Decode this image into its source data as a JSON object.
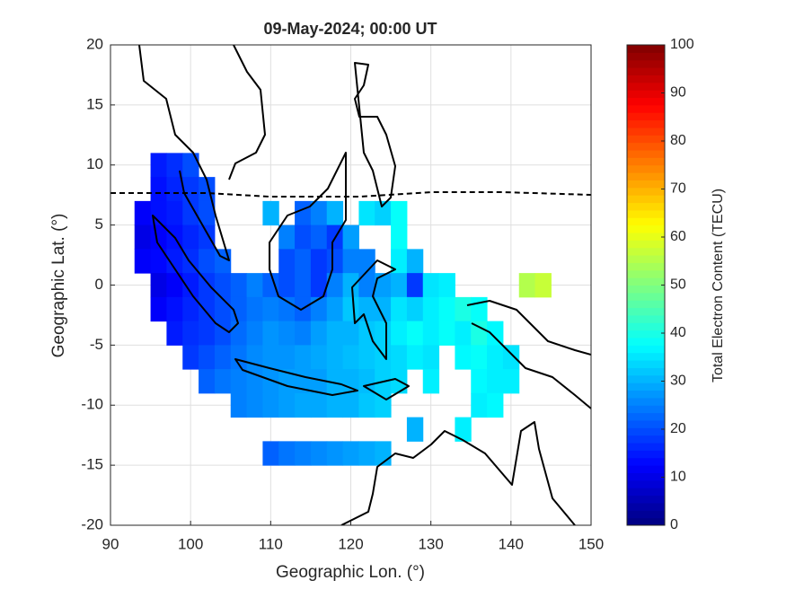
{
  "chart_data": {
    "type": "heatmap",
    "title": "09-May-2024; 00:00 UT",
    "xlabel": "Geographic Lon. (°)",
    "ylabel": "Geographic Lat. (°)",
    "colorbar_label": "Total Electron Content (TECU)",
    "xlim": [
      90,
      150
    ],
    "xticks": [
      90,
      100,
      110,
      120,
      130,
      140,
      150
    ],
    "ylim": [
      -20,
      20
    ],
    "yticks": [
      -20,
      -15,
      -10,
      -5,
      0,
      5,
      10,
      15,
      20
    ],
    "clim": [
      0,
      100
    ],
    "cticks": [
      0,
      10,
      20,
      30,
      40,
      50,
      60,
      70,
      80,
      90,
      100
    ],
    "colormap": "jet",
    "grid": true,
    "x": [
      96,
      98,
      100,
      96,
      98,
      100,
      102,
      94,
      96,
      98,
      100,
      102,
      110,
      114,
      116,
      118,
      122,
      124,
      126,
      94,
      96,
      98,
      100,
      102,
      112,
      114,
      116,
      118,
      120,
      126,
      94,
      96,
      98,
      100,
      102,
      104,
      112,
      114,
      116,
      118,
      120,
      122,
      126,
      128,
      96,
      98,
      100,
      102,
      104,
      106,
      108,
      110,
      112,
      114,
      116,
      118,
      120,
      122,
      124,
      126,
      128,
      130,
      132,
      142,
      144,
      96,
      98,
      100,
      102,
      104,
      106,
      108,
      110,
      112,
      114,
      116,
      118,
      120,
      122,
      124,
      126,
      128,
      130,
      132,
      134,
      136,
      98,
      100,
      102,
      104,
      106,
      108,
      110,
      112,
      114,
      116,
      118,
      120,
      122,
      124,
      126,
      128,
      130,
      132,
      134,
      136,
      138,
      100,
      102,
      104,
      106,
      108,
      110,
      112,
      114,
      116,
      118,
      120,
      122,
      124,
      126,
      128,
      130,
      134,
      136,
      138,
      140,
      102,
      104,
      106,
      108,
      110,
      112,
      114,
      116,
      118,
      120,
      122,
      124,
      126,
      130,
      136,
      138,
      140,
      106,
      108,
      110,
      112,
      114,
      116,
      118,
      120,
      122,
      124,
      136,
      138,
      128,
      134,
      110,
      112,
      114,
      116,
      118,
      120,
      122,
      124
    ],
    "y": [
      10,
      10,
      10,
      8,
      8,
      8,
      8,
      6,
      6,
      6,
      6,
      6,
      6,
      6,
      6,
      6,
      6,
      6,
      6,
      4,
      4,
      4,
      4,
      4,
      4,
      4,
      4,
      4,
      4,
      4,
      2,
      2,
      2,
      2,
      2,
      2,
      2,
      2,
      2,
      2,
      2,
      2,
      2,
      2,
      0,
      0,
      0,
      0,
      0,
      0,
      0,
      0,
      0,
      0,
      0,
      0,
      0,
      0,
      0,
      0,
      0,
      0,
      0,
      0,
      0,
      -2,
      -2,
      -2,
      -2,
      -2,
      -2,
      -2,
      -2,
      -2,
      -2,
      -2,
      -2,
      -2,
      -2,
      -2,
      -2,
      -2,
      -2,
      -2,
      -2,
      -2,
      -4,
      -4,
      -4,
      -4,
      -4,
      -4,
      -4,
      -4,
      -4,
      -4,
      -4,
      -4,
      -4,
      -4,
      -4,
      -4,
      -4,
      -4,
      -4,
      -4,
      -4,
      -6,
      -6,
      -6,
      -6,
      -6,
      -6,
      -6,
      -6,
      -6,
      -6,
      -6,
      -6,
      -6,
      -6,
      -6,
      -6,
      -6,
      -6,
      -6,
      -6,
      -8,
      -8,
      -8,
      -8,
      -8,
      -8,
      -8,
      -8,
      -8,
      -8,
      -8,
      -8,
      -8,
      -8,
      -8,
      -8,
      -8,
      -10,
      -10,
      -10,
      -10,
      -10,
      -10,
      -10,
      -10,
      -10,
      -10,
      -10,
      -10,
      -12,
      -12,
      -14,
      -14,
      -14,
      -14,
      -14,
      -14,
      -14,
      -14
    ],
    "values": [
      15,
      17,
      20,
      14,
      16,
      18,
      20,
      12,
      14,
      15,
      18,
      20,
      30,
      22,
      25,
      30,
      35,
      33,
      38,
      10,
      12,
      14,
      16,
      18,
      25,
      20,
      22,
      18,
      28,
      38,
      12,
      13,
      15,
      17,
      20,
      22,
      20,
      22,
      18,
      20,
      25,
      25,
      36,
      30,
      10,
      12,
      15,
      18,
      20,
      22,
      25,
      22,
      20,
      22,
      18,
      25,
      30,
      25,
      28,
      30,
      18,
      35,
      36,
      55,
      57,
      12,
      14,
      16,
      18,
      20,
      22,
      24,
      25,
      24,
      22,
      25,
      28,
      32,
      30,
      30,
      35,
      33,
      36,
      38,
      40,
      38,
      15,
      17,
      18,
      20,
      23,
      25,
      27,
      26,
      25,
      28,
      30,
      30,
      32,
      33,
      36,
      38,
      36,
      38,
      36,
      40,
      37,
      18,
      20,
      22,
      24,
      26,
      27,
      27,
      28,
      29,
      30,
      31,
      32,
      33,
      34,
      36,
      35,
      37,
      38,
      36,
      35,
      22,
      24,
      25,
      26,
      27,
      28,
      28,
      28,
      30,
      30,
      31,
      33,
      34,
      36,
      37,
      36,
      36,
      25,
      26,
      27,
      28,
      29,
      29,
      30,
      30,
      32,
      33,
      36,
      37,
      30,
      36,
      22,
      24,
      25,
      26,
      27,
      28,
      29,
      30
    ]
  }
}
